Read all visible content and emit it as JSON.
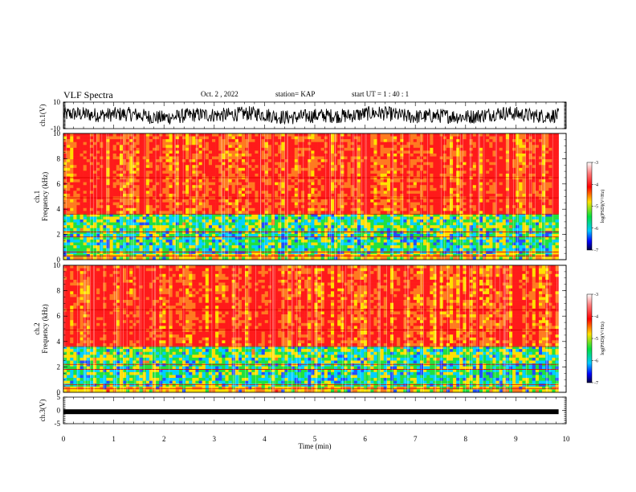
{
  "header": {
    "title": "VLF Spectra",
    "date": "Oct. 2 , 2022",
    "station": "station= KAP",
    "start_ut": "start  UT  =   1 : 40 : 1"
  },
  "chart_data": [
    {
      "type": "line",
      "panel": "ch1-waveform",
      "ylabel": "ch.1(V)",
      "ylim": [
        -10,
        10
      ],
      "yticks": [
        "10",
        "-10"
      ],
      "xlim": [
        0,
        10
      ],
      "color": "#000000"
    },
    {
      "type": "heatmap",
      "panel": "ch1-spectrogram",
      "ylabel": "ch.1\nFrequency  (kHz)",
      "ylabel_lines": [
        "ch.1",
        "Frequency  (kHz)"
      ],
      "ylim": [
        0,
        10
      ],
      "yticks": [
        "0",
        "2",
        "4",
        "6",
        "8",
        "10"
      ],
      "xlim": [
        0,
        9.85
      ],
      "colorbar": {
        "label": "log(PSD)(V²/Hz)",
        "range": [
          -7,
          -3
        ],
        "ticks": [
          "-3",
          "-4",
          "-5",
          "-6",
          "-7"
        ]
      }
    },
    {
      "type": "heatmap",
      "panel": "ch2-spectrogram",
      "ylabel": "ch.2\nFrequency  (kHz)",
      "ylabel_lines": [
        "ch.2",
        "Frequency  (kHz)"
      ],
      "ylim": [
        0,
        10
      ],
      "yticks": [
        "0",
        "2",
        "4",
        "6",
        "8",
        "10"
      ],
      "xlim": [
        0,
        9.85
      ],
      "colorbar": {
        "label": "log(PSD)(V²/Hz)",
        "range": [
          -7,
          -3
        ],
        "ticks": [
          "-3",
          "-4",
          "-5",
          "-6",
          "-7"
        ]
      }
    },
    {
      "type": "line",
      "panel": "ch3-signal",
      "ylabel": "ch.3(V)",
      "ylim": [
        -5,
        5
      ],
      "yticks": [
        "5",
        "0",
        "-5"
      ],
      "values_level": -0.5,
      "xlim": [
        0,
        9.85
      ]
    }
  ],
  "xaxis": {
    "label": "Time  (min)",
    "ticks": [
      "0",
      "1",
      "2",
      "3",
      "4",
      "5",
      "6",
      "7",
      "8",
      "9",
      "10"
    ],
    "range": [
      0,
      10
    ]
  },
  "colors": {
    "high": "#ff1a1a",
    "mid": "#ffe000",
    "low": "#20e040",
    "lower": "#00d0ff",
    "lowest": "#000060"
  }
}
